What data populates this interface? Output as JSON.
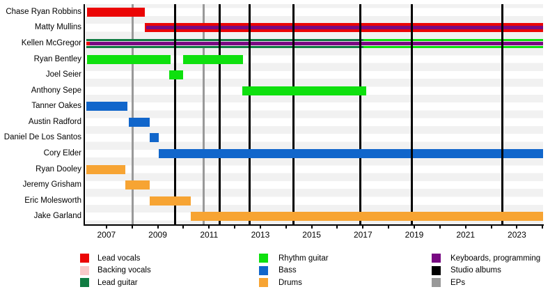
{
  "chart_data": {
    "type": "bar",
    "subtype": "band-members-timeline",
    "x_axis": {
      "min": 2006.19,
      "max": 2024.02,
      "tick_step": 1,
      "label_years": [
        2007,
        2009,
        2011,
        2013,
        2015,
        2017,
        2019,
        2021,
        2023
      ]
    },
    "colors": {
      "lead_vocals": "#eb0505",
      "backing_vocals": "#f9c9c9",
      "lead_guitar": "#107c42",
      "rhythm_guitar": "#0ee00e",
      "bass": "#1166cb",
      "drums": "#f7a433",
      "keyboards": "#780a82",
      "studio_albums": "#000000",
      "eps": "#999999"
    },
    "members": [
      {
        "name": "Chase Ryan Robbins",
        "bars": [
          {
            "role": "lead_vocals",
            "from": 2006.24,
            "till": 2008.51
          }
        ],
        "stripes": []
      },
      {
        "name": "Matty Mullins",
        "bars": [
          {
            "role": "lead_vocals",
            "from": 2008.51,
            "till": 2024.02
          }
        ],
        "stripes": [
          {
            "role": "keyboards",
            "from": 2008.56,
            "till": 2024.02
          }
        ]
      },
      {
        "name": "Kellen McGregor",
        "bars": [
          {
            "role": "lead_guitar",
            "from": 2006.22,
            "till": 2017.02
          },
          {
            "role": "rhythm_guitar",
            "from": 2017.02,
            "till": 2024.02
          }
        ],
        "stripes": [
          {
            "role": "lead_vocals",
            "from": 2006.22,
            "till": 2006.35
          },
          {
            "role": "keyboards",
            "from": 2006.35,
            "till": 2024.02
          }
        ]
      },
      {
        "name": "Ryan Bentley",
        "bars": [
          {
            "role": "rhythm_guitar",
            "from": 2006.24,
            "till": 2009.49
          },
          {
            "role": "rhythm_guitar",
            "from": 2010.0,
            "till": 2012.31
          }
        ],
        "stripes": []
      },
      {
        "name": "Joel Seier",
        "bars": [
          {
            "role": "rhythm_guitar",
            "from": 2009.44,
            "till": 2010.0
          }
        ],
        "stripes": []
      },
      {
        "name": "Anthony Sepe",
        "bars": [
          {
            "role": "rhythm_guitar",
            "from": 2012.29,
            "till": 2017.12
          }
        ],
        "stripes": []
      },
      {
        "name": "Tanner Oakes",
        "bars": [
          {
            "role": "bass",
            "from": 2006.22,
            "till": 2007.81
          }
        ],
        "stripes": []
      },
      {
        "name": "Austin Radford",
        "bars": [
          {
            "role": "bass",
            "from": 2007.86,
            "till": 2008.69
          }
        ],
        "stripes": []
      },
      {
        "name": "Daniel De Los Santos",
        "bars": [
          {
            "role": "bass",
            "from": 2008.69,
            "till": 2009.04
          }
        ],
        "stripes": []
      },
      {
        "name": "Cory Elder",
        "bars": [
          {
            "role": "bass",
            "from": 2009.04,
            "till": 2024.02
          }
        ],
        "stripes": []
      },
      {
        "name": "Ryan Dooley",
        "bars": [
          {
            "role": "drums",
            "from": 2006.22,
            "till": 2007.73
          }
        ],
        "stripes": []
      },
      {
        "name": "Jeremy Grisham",
        "bars": [
          {
            "role": "drums",
            "from": 2007.73,
            "till": 2008.69
          }
        ],
        "stripes": []
      },
      {
        "name": "Eric Molesworth",
        "bars": [
          {
            "role": "drums",
            "from": 2008.69,
            "till": 2010.28
          }
        ],
        "stripes": []
      },
      {
        "name": "Jake Garland",
        "bars": [
          {
            "role": "drums",
            "from": 2010.28,
            "till": 2024.02
          }
        ],
        "stripes": []
      }
    ],
    "releases": [
      {
        "kind": "ep",
        "year": 2008.01
      },
      {
        "kind": "album",
        "year": 2009.67
      },
      {
        "kind": "ep",
        "year": 2010.8
      },
      {
        "kind": "album",
        "year": 2011.42
      },
      {
        "kind": "album",
        "year": 2012.58
      },
      {
        "kind": "album",
        "year": 2014.3
      },
      {
        "kind": "album",
        "year": 2016.9
      },
      {
        "kind": "album",
        "year": 2018.9
      },
      {
        "kind": "album",
        "year": 2022.42
      }
    ],
    "legend": {
      "columns": [
        [
          {
            "label": "Lead vocals",
            "role": "lead_vocals"
          },
          {
            "label": "Backing vocals",
            "role": "backing_vocals"
          },
          {
            "label": "Lead guitar",
            "role": "lead_guitar"
          }
        ],
        [
          {
            "label": "Rhythm guitar",
            "role": "rhythm_guitar"
          },
          {
            "label": "Bass",
            "role": "bass"
          },
          {
            "label": "Drums",
            "role": "drums"
          }
        ],
        [
          {
            "label": "Keyboards, programming",
            "role": "keyboards"
          },
          {
            "label": "Studio albums",
            "role": "studio_albums"
          },
          {
            "label": "EPs",
            "role": "eps"
          }
        ]
      ]
    }
  }
}
